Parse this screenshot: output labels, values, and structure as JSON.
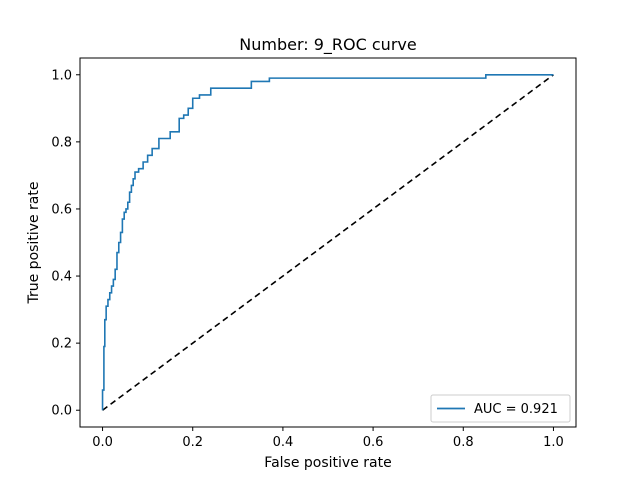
{
  "chart_data": {
    "type": "line",
    "title": "Number: 9_ROC curve",
    "xlabel": "False positive rate",
    "ylabel": "True positive rate",
    "xlim": [
      -0.05,
      1.05
    ],
    "ylim": [
      -0.05,
      1.05
    ],
    "xticks": [
      "0.0",
      "0.2",
      "0.4",
      "0.6",
      "0.8",
      "1.0"
    ],
    "yticks": [
      "0.0",
      "0.2",
      "0.4",
      "0.6",
      "0.8",
      "1.0"
    ],
    "grid": false,
    "legend_position": "lower-right",
    "colors": {
      "roc": "#1f77b4",
      "diagonal": "#000000"
    },
    "series": [
      {
        "name": "AUC = 0.921",
        "style": "solid",
        "x": [
          0.0,
          0.0,
          0.003,
          0.003,
          0.005,
          0.005,
          0.008,
          0.008,
          0.012,
          0.012,
          0.016,
          0.016,
          0.02,
          0.02,
          0.024,
          0.024,
          0.028,
          0.028,
          0.032,
          0.032,
          0.036,
          0.036,
          0.04,
          0.04,
          0.044,
          0.044,
          0.048,
          0.048,
          0.052,
          0.052,
          0.056,
          0.056,
          0.06,
          0.06,
          0.064,
          0.064,
          0.068,
          0.068,
          0.072,
          0.072,
          0.08,
          0.08,
          0.09,
          0.09,
          0.1,
          0.1,
          0.11,
          0.11,
          0.125,
          0.125,
          0.15,
          0.15,
          0.17,
          0.17,
          0.18,
          0.18,
          0.19,
          0.19,
          0.2,
          0.2,
          0.215,
          0.215,
          0.24,
          0.24,
          0.265,
          0.265,
          0.33,
          0.33,
          0.37,
          0.37,
          0.4,
          0.4,
          0.85,
          0.85,
          1.0
        ],
        "y": [
          0.0,
          0.06,
          0.06,
          0.19,
          0.19,
          0.27,
          0.27,
          0.31,
          0.31,
          0.33,
          0.33,
          0.35,
          0.35,
          0.37,
          0.37,
          0.39,
          0.39,
          0.42,
          0.42,
          0.47,
          0.47,
          0.5,
          0.5,
          0.53,
          0.53,
          0.57,
          0.57,
          0.59,
          0.59,
          0.6,
          0.6,
          0.62,
          0.62,
          0.65,
          0.65,
          0.67,
          0.67,
          0.69,
          0.69,
          0.71,
          0.71,
          0.72,
          0.72,
          0.74,
          0.74,
          0.76,
          0.76,
          0.78,
          0.78,
          0.81,
          0.81,
          0.83,
          0.83,
          0.87,
          0.87,
          0.88,
          0.88,
          0.9,
          0.9,
          0.93,
          0.93,
          0.94,
          0.94,
          0.96,
          0.96,
          0.96,
          0.96,
          0.98,
          0.98,
          0.99,
          0.99,
          0.99,
          0.99,
          1.0,
          1.0
        ]
      },
      {
        "name": "",
        "style": "dashed",
        "x": [
          0.0,
          1.0
        ],
        "y": [
          0.0,
          1.0
        ]
      }
    ]
  }
}
